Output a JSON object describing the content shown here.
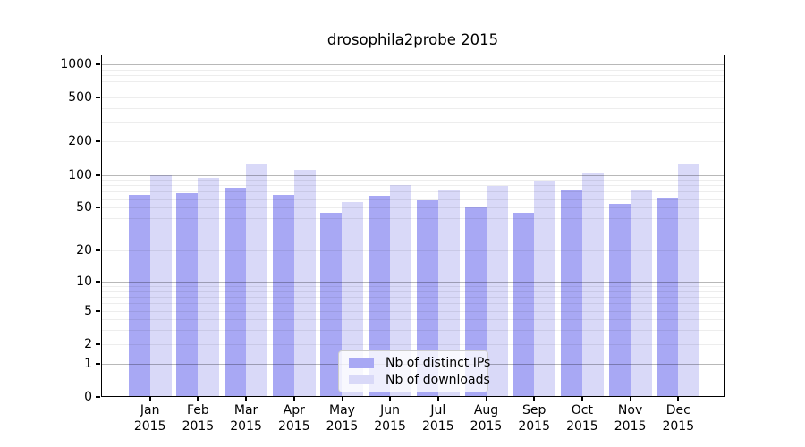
{
  "title": "drosophila2probe 2015",
  "chart_data": {
    "type": "bar",
    "title": "drosophila2probe 2015",
    "categories": [
      "Jan",
      "Feb",
      "Mar",
      "Apr",
      "May",
      "Jun",
      "Jul",
      "Aug",
      "Sep",
      "Oct",
      "Nov",
      "Dec"
    ],
    "category_year": "2015",
    "series": [
      {
        "name": "Nb of distinct IPs",
        "color": "#a8a8f4",
        "values": [
          65,
          68,
          76,
          66,
          45,
          64,
          58,
          50,
          45,
          72,
          54,
          61
        ]
      },
      {
        "name": "Nb of downloads",
        "color": "#d9d9f8",
        "values": [
          100,
          93,
          126,
          110,
          56,
          81,
          74,
          79,
          88,
          105,
          73,
          126
        ]
      }
    ],
    "yscale": "log1p",
    "ylim": [
      0,
      1230
    ],
    "y_ticks": [
      {
        "label": "0",
        "value": 0
      },
      {
        "label": "1",
        "value": 1
      },
      {
        "label": "2",
        "value": 2
      },
      {
        "label": "5",
        "value": 5
      },
      {
        "label": "10",
        "value": 10
      },
      {
        "label": "20",
        "value": 20
      },
      {
        "label": "50",
        "value": 50
      },
      {
        "label": "100",
        "value": 100
      },
      {
        "label": "200",
        "value": 200
      },
      {
        "label": "500",
        "value": 500
      },
      {
        "label": "1000",
        "value": 1000
      }
    ],
    "y_major_gridlines": [
      1,
      10,
      100,
      1000
    ],
    "grid": true,
    "legend_position": "lower center"
  },
  "colors": {
    "background": "#ffffff",
    "spine": "#000000",
    "major_grid": "rgba(0,0,0,0.28)",
    "minor_grid": "rgba(0,0,0,0.07)",
    "legend_border": "#cccccc",
    "legend_background": "rgba(255,255,255,0.8)"
  }
}
